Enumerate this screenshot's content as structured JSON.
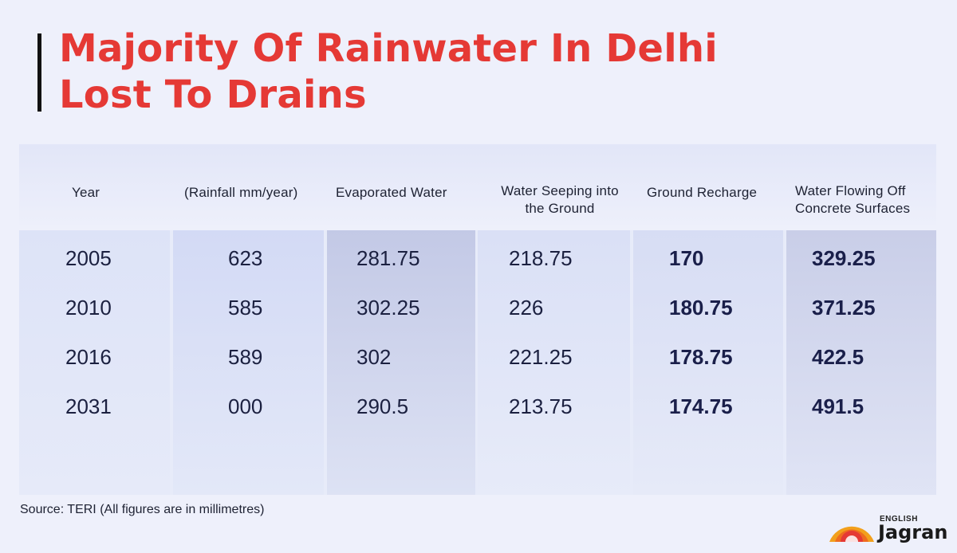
{
  "title_lines": [
    "Majority Of Rainwater In Delhi",
    "Lost To Drains"
  ],
  "source": "Source: TERI (All figures are in millimetres)",
  "logo": {
    "top": "ENGLISH",
    "main": "Jagran"
  },
  "colors": {
    "title": "#e53935",
    "background": "#eef0fb",
    "text": "#1b2040"
  },
  "chart_data": {
    "type": "table",
    "columns": [
      [
        "Year"
      ],
      [
        "(Rainfall mm/year)"
      ],
      [
        "Evaporated Water"
      ],
      [
        "Water Seeping into",
        "the Ground"
      ],
      [
        "Ground Recharge"
      ],
      [
        "Water Flowing Off",
        "Concrete Surfaces"
      ]
    ],
    "rows": [
      [
        "2005",
        "623",
        "281.75",
        "218.75",
        "170",
        "329.25"
      ],
      [
        "2010",
        "585",
        "302.25",
        "226",
        "180.75",
        "371.25"
      ],
      [
        "2016",
        "589",
        "302",
        "221.25",
        "178.75",
        "422.5"
      ],
      [
        "2031",
        "000",
        "290.5",
        "213.75",
        "174.75",
        "491.5"
      ]
    ]
  }
}
